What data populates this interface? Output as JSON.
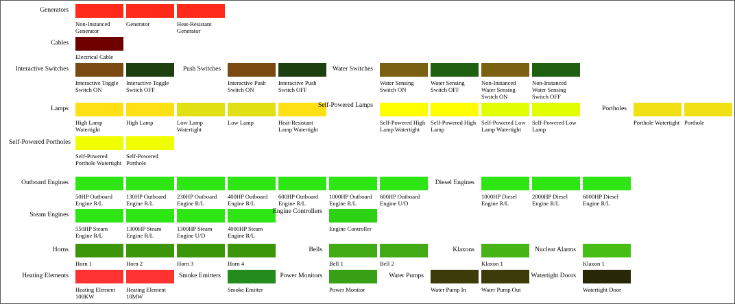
{
  "groups": [
    {
      "label": "Generators",
      "items": [
        {
          "label": "Non-Instanced Generator",
          "color": "#ff2a1a"
        },
        {
          "label": "Generator",
          "color": "#ff2a1a"
        },
        {
          "label": "Heat-Resistant Generator",
          "color": "#ff2a1a"
        }
      ]
    },
    {
      "label": "Cables",
      "items": [
        {
          "label": "Electrical Cable",
          "color": "#6e0000"
        }
      ]
    },
    {
      "label": "Interactive Switches",
      "items": [
        {
          "label": "Interactive Toggle Switch ON",
          "color": "#7a4a12"
        },
        {
          "label": "Interactive Toggle Switch OFF",
          "color": "#1e4010"
        }
      ]
    },
    {
      "label": "Push Switches",
      "items": [
        {
          "label": "Interactive Push Switch ON",
          "color": "#7a4a12"
        },
        {
          "label": "Interactive Push Switch OFF",
          "color": "#1e4010"
        }
      ]
    },
    {
      "label": "Water Switches",
      "items": [
        {
          "label": "Water Sensing Switch ON",
          "color": "#7a6010"
        },
        {
          "label": "Water Sensing Switch OFF",
          "color": "#1f6010"
        },
        {
          "label": "Non-Instanced Water Sensing Switch ON",
          "color": "#7a6010"
        },
        {
          "label": "Non-Instanced Water Sensing Switch OFF",
          "color": "#1f6010"
        }
      ]
    },
    {
      "label": "Lamps",
      "items": [
        {
          "label": "High Lamp Watertight",
          "color": "#ffe014"
        },
        {
          "label": "High Lamp",
          "color": "#ffe014"
        },
        {
          "label": "Low Lamp Watertight",
          "color": "#e1e014"
        },
        {
          "label": "Low Lamp",
          "color": "#e1e014"
        },
        {
          "label": "Heat-Resistant Lamp Watertight",
          "color": "#ffe014"
        }
      ]
    },
    {
      "label": "Self-Powered Lamps",
      "items": [
        {
          "label": "Self-Powered High Lamp Watertight",
          "color": "#ffff00"
        },
        {
          "label": "Self-Powered High Lamp",
          "color": "#ffff00"
        },
        {
          "label": "Self-Powered Low Lamp Watertight",
          "color": "#e1ff00"
        },
        {
          "label": "Self-Powered Low Lamp",
          "color": "#e1ff00"
        }
      ]
    },
    {
      "label": "Portholes",
      "items": [
        {
          "label": "Porthole Watertight",
          "color": "#f0e014"
        },
        {
          "label": "Porthole",
          "color": "#f0e014"
        }
      ]
    },
    {
      "label": "Self-Powered Portholes",
      "items": [
        {
          "label": "Self-Powered Porthole Watertight",
          "color": "#f0ff00"
        },
        {
          "label": "Self-Powered Porthole",
          "color": "#f0ff00"
        }
      ]
    },
    {
      "label": "Outboard Engines",
      "items": [
        {
          "label": "50HP Outboard Engine R/L",
          "color": "#2ee614"
        },
        {
          "label": "130HP Outboard Engine R/L",
          "color": "#2ee614"
        },
        {
          "label": "230HP Outboard Engine R/L",
          "color": "#2ee614"
        },
        {
          "label": "400HP Outboard Engine R/L",
          "color": "#2ee614"
        },
        {
          "label": "600HP Outboard Engine R/L",
          "color": "#2ee614"
        },
        {
          "label": "1000HP Outboard Engine R/L",
          "color": "#2ee614"
        },
        {
          "label": "600HP Outboard Engine U/D",
          "color": "#2ee614"
        }
      ]
    },
    {
      "label": "Diesel Engines",
      "items": [
        {
          "label": "1000HP Diesel Engine R/L",
          "color": "#2ee614"
        },
        {
          "label": "2000HP Diesel Engine R/L",
          "color": "#2ee614"
        },
        {
          "label": "6000HP Diesel Engine R/L",
          "color": "#2ee614"
        }
      ]
    },
    {
      "label": "Steam Engines",
      "items": [
        {
          "label": "550HP Steam Engine R/L",
          "color": "#2ee614"
        },
        {
          "label": "1300HP Steam Engine R/L",
          "color": "#2ee614"
        },
        {
          "label": "1300HP Steam Engine U/D",
          "color": "#2ee614"
        },
        {
          "label": "4000HP Steam Engine R/L",
          "color": "#2ee614"
        }
      ]
    },
    {
      "label": "Engine Controllers",
      "items": [
        {
          "label": "Engine Controller",
          "color": "#2ed214"
        }
      ]
    },
    {
      "label": "Horns",
      "items": [
        {
          "label": "Horn 1",
          "color": "#3c960a"
        },
        {
          "label": "Horn 2",
          "color": "#3c960a"
        },
        {
          "label": "Horn 3",
          "color": "#3c960a"
        },
        {
          "label": "Horn 4",
          "color": "#3c960a"
        }
      ]
    },
    {
      "label": "Bells",
      "items": [
        {
          "label": "Bell 1",
          "color": "#41aa14"
        },
        {
          "label": "Bell 2",
          "color": "#41aa14"
        }
      ]
    },
    {
      "label": "Klaxons",
      "items": [
        {
          "label": "Klaxon 1",
          "color": "#46b414"
        }
      ]
    },
    {
      "label": "Nuclear Alarms",
      "items": [
        {
          "label": "Klaxon 1",
          "color": "#46be14"
        }
      ]
    },
    {
      "label": "Heating Elements",
      "items": [
        {
          "label": "Heating Element 100KW",
          "color": "#ff3232"
        },
        {
          "label": "Heating Element 10MW",
          "color": "#ff3232"
        }
      ]
    },
    {
      "label": "Smoke Emitters",
      "items": [
        {
          "label": "Smoke Emitter",
          "color": "#238c1c"
        }
      ]
    },
    {
      "label": "Power Monitors",
      "items": [
        {
          "label": "Power Monitor",
          "color": "#37a014"
        }
      ]
    },
    {
      "label": "Water Pumps",
      "items": [
        {
          "label": "Water Pump In",
          "color": "#3c3c0a"
        },
        {
          "label": "Water Pump Out",
          "color": "#3c3c0a"
        }
      ]
    },
    {
      "label": "Watertight Doors",
      "items": [
        {
          "label": "Watertight Door",
          "color": "#282806"
        }
      ]
    }
  ]
}
